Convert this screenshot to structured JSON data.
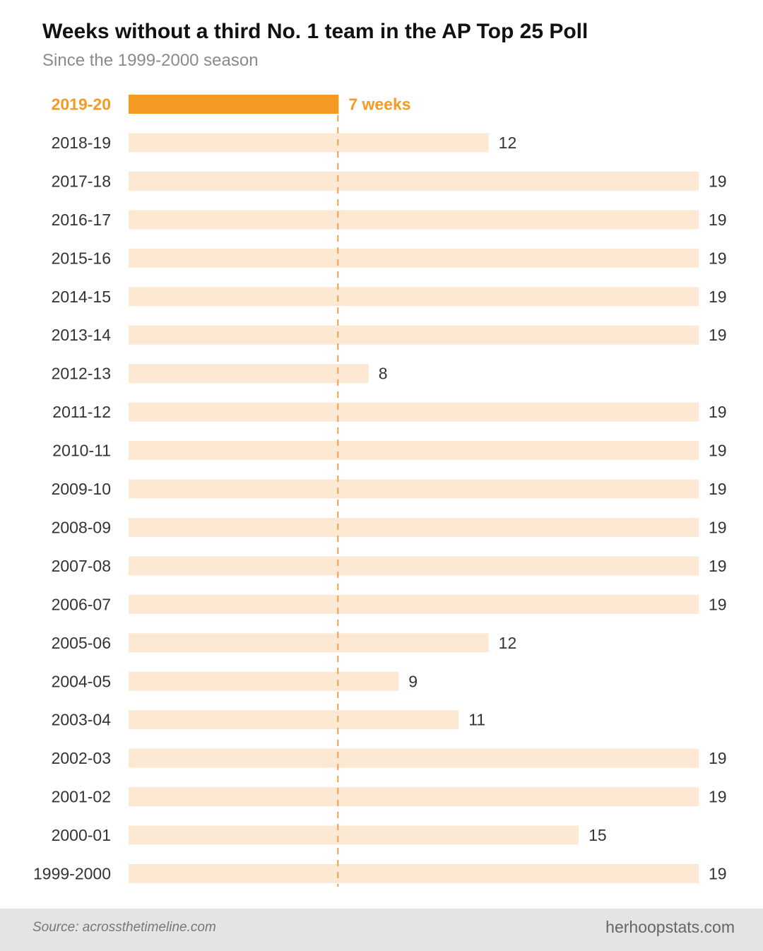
{
  "chart_data": {
    "type": "bar",
    "orientation": "horizontal",
    "title": "Weeks without a third No. 1 team in the AP Top 25 Poll",
    "subtitle": "Since the 1999-2000 season",
    "categories": [
      "2019-20",
      "2018-19",
      "2017-18",
      "2016-17",
      "2015-16",
      "2014-15",
      "2013-14",
      "2012-13",
      "2011-12",
      "2010-11",
      "2009-10",
      "2008-09",
      "2007-08",
      "2006-07",
      "2005-06",
      "2004-05",
      "2003-04",
      "2002-03",
      "2001-02",
      "2000-01",
      "1999-2000"
    ],
    "values": [
      7,
      12,
      19,
      19,
      19,
      19,
      19,
      8,
      19,
      19,
      19,
      19,
      19,
      19,
      12,
      9,
      11,
      19,
      19,
      15,
      19
    ],
    "value_labels": [
      "7 weeks",
      "12",
      "19",
      "19",
      "19",
      "19",
      "19",
      "8",
      "19",
      "19",
      "19",
      "19",
      "19",
      "19",
      "12",
      "9",
      "11",
      "19",
      "19",
      "15",
      "19"
    ],
    "highlight_category": "2019-20",
    "reference_line": {
      "value": 7,
      "style": "dashed"
    },
    "xlim": [
      0,
      19
    ],
    "xlabel": "",
    "ylabel": "",
    "grid": false,
    "colors": {
      "highlight": "#f59a23",
      "bar": "#fde9d3",
      "reference_line": "#f0a04b"
    }
  },
  "footer": {
    "source": "Source: acrossthetimeline.com",
    "brand": "herhoopstats.com"
  }
}
